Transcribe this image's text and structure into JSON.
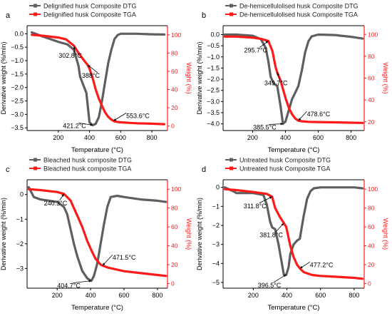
{
  "colors": {
    "dtg": "#5f5f5f",
    "tga": "#ff1a1a",
    "axis": "#000000"
  },
  "chart_data": [
    {
      "panel": "a",
      "type": "line",
      "xlabel": "Temperature (°C)",
      "ylabel_left": "Derivative weight (%/min)",
      "ylabel_right": "Weight (%)",
      "xlim": [
        0,
        900
      ],
      "xticks": [
        200,
        400,
        600,
        800
      ],
      "ylim_left": [
        -3.6,
        0.3
      ],
      "yticks_left": [
        -3.5,
        -3.0,
        -2.5,
        -2.0,
        -1.5,
        -1.0,
        -0.5,
        0.0
      ],
      "ylim_right": [
        -5,
        110
      ],
      "yticks_right": [
        0,
        20,
        40,
        60,
        80,
        100
      ],
      "legend": [
        "Delignified husk Composite DTG",
        "Delignified husk Composite TGA"
      ],
      "series": [
        {
          "name": "Delignified husk Composite DTG",
          "axis": "left",
          "x": [
            30,
            100,
            200,
            260,
            300,
            330,
            340,
            360,
            380,
            400,
            420,
            440,
            460,
            480,
            500,
            520,
            540,
            560,
            580,
            600,
            650,
            700,
            800,
            880
          ],
          "y": [
            0.05,
            -0.1,
            -0.3,
            -0.4,
            -0.6,
            -1.2,
            -1.6,
            -1.9,
            -2.2,
            -3.3,
            -3.4,
            -3.35,
            -3.1,
            -2.5,
            -1.8,
            -1.1,
            -0.6,
            -0.2,
            -0.05,
            0.0,
            0.0,
            0.0,
            -0.02,
            -0.03
          ]
        },
        {
          "name": "Delignified husk Composite TGA",
          "axis": "right",
          "x": [
            30,
            100,
            200,
            250,
            300,
            330,
            360,
            388,
            400,
            421,
            440,
            460,
            480,
            500,
            520,
            540,
            560,
            580,
            600,
            700,
            800,
            880
          ],
          "y": [
            100,
            99,
            97,
            95,
            88,
            80,
            73,
            67,
            63,
            52,
            40,
            30,
            22,
            15,
            10,
            7,
            5,
            4.5,
            4,
            3,
            2.5,
            2
          ]
        }
      ],
      "annotations": [
        {
          "text": "302.8°C",
          "x": 302.8
        },
        {
          "text": "388°C",
          "x": 388
        },
        {
          "text": "421.2°C",
          "x": 421.2
        },
        {
          "text": "553.6°C",
          "x": 553.6
        }
      ]
    },
    {
      "panel": "b",
      "type": "line",
      "xlabel": "Temperature (°C)",
      "ylabel_left": "Derivative weight (%/min)",
      "ylabel_right": "Weight (%)",
      "xlim": [
        20,
        880
      ],
      "xticks": [
        200,
        400,
        600,
        800
      ],
      "ylim_left": [
        -4.3,
        0.4
      ],
      "yticks_left": [
        -4.0,
        -3.5,
        -3.0,
        -2.5,
        -2.0,
        -1.5,
        -1.0,
        -0.5,
        0.0
      ],
      "ylim_right": [
        12,
        108
      ],
      "yticks_right": [
        20,
        40,
        60,
        80,
        100
      ],
      "legend": [
        "De-hemicellulolised husk Composite DTG",
        "De-hemicellulolised husk Composite TGA"
      ],
      "series": [
        {
          "name": "De-hemicellulolised husk Composite DTG",
          "axis": "left",
          "x": [
            30,
            100,
            200,
            250,
            280,
            296,
            310,
            330,
            350,
            370,
            385,
            400,
            420,
            440,
            460,
            479,
            500,
            520,
            540,
            560,
            600,
            700,
            800,
            870
          ],
          "y": [
            0.0,
            0.0,
            -0.05,
            -0.2,
            -0.6,
            -1.2,
            -1.9,
            -2.2,
            -2.3,
            -3.2,
            -4.0,
            -3.9,
            -3.4,
            -2.9,
            -2.6,
            -2.3,
            -1.6,
            -0.8,
            -0.3,
            -0.08,
            0.0,
            -0.02,
            -0.1,
            -0.18
          ]
        },
        {
          "name": "De-hemicellulolised husk Composite TGA",
          "axis": "right",
          "x": [
            30,
            100,
            200,
            250,
            296,
            320,
            340,
            350,
            370,
            385,
            400,
            420,
            440,
            460,
            479,
            500,
            520,
            540,
            600,
            700,
            800,
            870
          ],
          "y": [
            98,
            98,
            97,
            96,
            94,
            85,
            70,
            65,
            58,
            50,
            42,
            33,
            27,
            23,
            21,
            20.5,
            20.2,
            20,
            19.8,
            19.5,
            19.2,
            19
          ]
        }
      ],
      "annotations": [
        {
          "text": "295.7°C",
          "x": 295.7
        },
        {
          "text": "349.7°C",
          "x": 349.7
        },
        {
          "text": "385.5°C",
          "x": 385.5
        },
        {
          "text": "478.6°C",
          "x": 478.6
        }
      ]
    },
    {
      "panel": "c",
      "type": "line",
      "xlabel": "Temperature (°C)",
      "ylabel_left": "Derivative weight (%/min)",
      "ylabel_right": "Weight (%)",
      "xlim": [
        20,
        860
      ],
      "xticks": [
        200,
        400,
        600,
        800
      ],
      "ylim_left": [
        -3.8,
        0.6
      ],
      "yticks_left": [
        -3,
        -2,
        -1,
        0
      ],
      "ylim_right": [
        -5,
        110
      ],
      "yticks_right": [
        0,
        20,
        40,
        60,
        80,
        100
      ],
      "legend": [
        "Bleached husk composite DTG",
        "Bleached husk composite TGA"
      ],
      "series": [
        {
          "name": "Bleached husk composite DTG",
          "axis": "left",
          "x": [
            30,
            60,
            100,
            200,
            240,
            260,
            280,
            300,
            320,
            350,
            380,
            405,
            420,
            440,
            460,
            480,
            500,
            520,
            560,
            600,
            700,
            800,
            850
          ],
          "y": [
            0.3,
            -0.1,
            -0.2,
            -0.3,
            -0.5,
            -0.8,
            -1.4,
            -2.0,
            -2.5,
            -3.1,
            -3.4,
            -3.5,
            -3.3,
            -2.8,
            -2.0,
            -1.2,
            -0.5,
            -0.1,
            -0.05,
            -0.1,
            -0.2,
            -0.25,
            -0.3
          ]
        },
        {
          "name": "Bleached husk composite TGA",
          "axis": "right",
          "x": [
            30,
            100,
            200,
            240,
            280,
            320,
            350,
            380,
            405,
            430,
            460,
            472,
            500,
            550,
            600,
            700,
            800,
            850
          ],
          "y": [
            100,
            99,
            97,
            95,
            88,
            72,
            60,
            45,
            35,
            26,
            20,
            19,
            17,
            15,
            13,
            11,
            9,
            8
          ]
        }
      ],
      "annotations": [
        {
          "text": "240.3°C",
          "x": 240.3
        },
        {
          "text": "471.5°C",
          "x": 471.5
        },
        {
          "text": "404.7°C",
          "x": 404.7
        }
      ]
    },
    {
      "panel": "d",
      "type": "line",
      "xlabel": "Temperature (°C)",
      "ylabel_left": "Derivative weight (%/min)",
      "ylabel_right": "Weight (%)",
      "xlim": [
        20,
        860
      ],
      "xticks": [
        200,
        400,
        600,
        800
      ],
      "ylim_left": [
        -5.3,
        0.4
      ],
      "yticks_left": [
        -5,
        -4,
        -3,
        -2,
        -1,
        0
      ],
      "ylim_right": [
        -5,
        110
      ],
      "yticks_right": [
        0,
        20,
        40,
        60,
        80,
        100
      ],
      "legend": [
        "Untreated husk Composite DTG",
        "Untreated husk Composite TGA"
      ],
      "series": [
        {
          "name": "Untreated husk Composite DTG",
          "axis": "left",
          "x": [
            30,
            80,
            100,
            200,
            260,
            280,
            300,
            312,
            330,
            350,
            370,
            382,
            396,
            410,
            420,
            440,
            460,
            477,
            500,
            520,
            540,
            560,
            600,
            700,
            800,
            850
          ],
          "y": [
            0.0,
            -0.2,
            -0.3,
            -0.3,
            -0.4,
            -0.9,
            -1.8,
            -2.1,
            -2.2,
            -3.0,
            -4.0,
            -4.6,
            -4.6,
            -4.2,
            -3.5,
            -3.0,
            -2.8,
            -2.7,
            -1.5,
            -0.6,
            -0.2,
            -0.05,
            0.0,
            0.0,
            0.0,
            -0.05
          ]
        },
        {
          "name": "Untreated husk Composite TGA",
          "axis": "right",
          "x": [
            30,
            100,
            200,
            280,
            312,
            330,
            360,
            382,
            396,
            420,
            440,
            460,
            477,
            500,
            550,
            600,
            700,
            800,
            850
          ],
          "y": [
            100,
            99,
            97,
            95,
            92,
            80,
            70,
            64,
            60,
            40,
            28,
            20,
            16,
            12,
            9,
            8,
            7,
            6,
            5
          ]
        }
      ],
      "annotations": [
        {
          "text": "311.8°C",
          "x": 311.8
        },
        {
          "text": "381.8°C",
          "x": 381.8
        },
        {
          "text": "396.5°C",
          "x": 396.5
        },
        {
          "text": "477.2°C",
          "x": 477.2
        }
      ]
    }
  ]
}
